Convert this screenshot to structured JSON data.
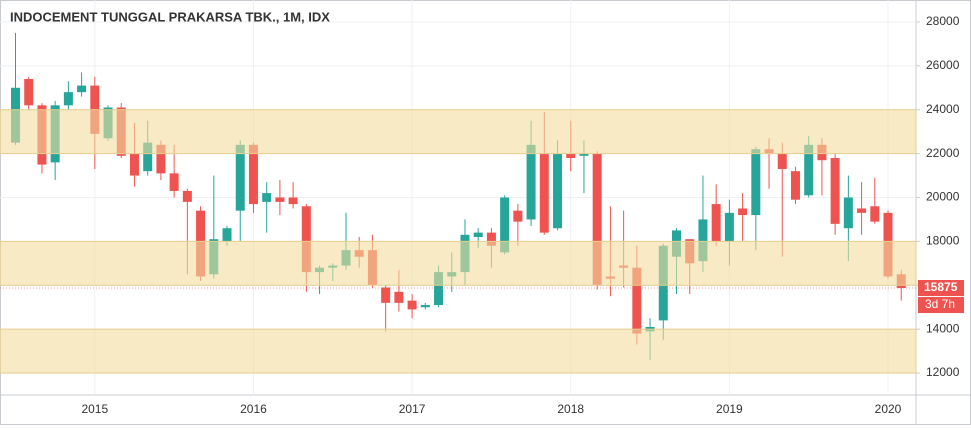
{
  "chart_data": {
    "type": "candlestick",
    "title": "INDOCEMENT TUNGGAL PRAKARSA TBK., 1M, IDX",
    "categories": [
      null,
      null,
      null,
      null,
      null,
      null,
      "2015",
      null,
      null,
      null,
      null,
      null,
      null,
      null,
      null,
      null,
      null,
      null,
      "2016",
      null,
      null,
      null,
      null,
      null,
      null,
      null,
      null,
      null,
      null,
      null,
      "2017",
      null,
      null,
      null,
      null,
      null,
      null,
      null,
      null,
      null,
      null,
      null,
      "2018",
      null,
      null,
      null,
      null,
      null,
      null,
      null,
      null,
      null,
      null,
      null,
      "2019",
      null,
      null,
      null,
      null,
      null,
      null,
      null,
      null,
      null,
      null,
      null,
      "2020",
      null
    ],
    "open": [
      22500,
      25400,
      24200,
      21600,
      24200,
      24800,
      25100,
      22700,
      24100,
      22000,
      21200,
      22400,
      21100,
      20300,
      19400,
      16500,
      18000,
      19400,
      22400,
      19800,
      20000,
      20000,
      19600,
      16600,
      16800,
      16900,
      17600,
      17600,
      15900,
      15700,
      15300,
      15000,
      15100,
      16400,
      16600,
      18200,
      18400,
      17500,
      19400,
      19000,
      22000,
      18600,
      22000,
      21900,
      22000,
      16400,
      16900,
      16800,
      13900,
      14400,
      17300,
      18100,
      17100,
      19700,
      18000,
      19500,
      19200,
      22200,
      22000,
      21200,
      20100,
      22400,
      21800,
      18600,
      19500,
      19600,
      19300,
      16500
    ],
    "high": [
      27500,
      25500,
      24300,
      24400,
      25300,
      25700,
      25500,
      24200,
      24300,
      23400,
      23500,
      22600,
      22400,
      20400,
      19600,
      21000,
      18700,
      22600,
      22500,
      20700,
      20800,
      20700,
      19700,
      16900,
      17000,
      19300,
      18200,
      18300,
      16000,
      16700,
      15600,
      15200,
      16900,
      17500,
      19000,
      18600,
      18600,
      20100,
      19700,
      23500,
      23900,
      22600,
      23500,
      22600,
      22100,
      19600,
      19400,
      17800,
      14500,
      17900,
      18600,
      18100,
      21000,
      20600,
      19900,
      20200,
      22300,
      22700,
      22500,
      21400,
      22800,
      22700,
      22000,
      21000,
      20700,
      20900,
      19400,
      16700
    ],
    "low": [
      22400,
      24000,
      21100,
      20800,
      24000,
      24600,
      21300,
      22600,
      21800,
      20500,
      21000,
      20800,
      20000,
      16500,
      16200,
      16300,
      17800,
      18000,
      19300,
      18400,
      19200,
      19500,
      15700,
      15600,
      16200,
      16700,
      16800,
      15900,
      13900,
      14800,
      14500,
      14900,
      15000,
      15700,
      16000,
      17700,
      16800,
      17400,
      17800,
      18700,
      18300,
      18500,
      21200,
      20200,
      15800,
      15500,
      15900,
      13300,
      12600,
      13500,
      15600,
      15600,
      16600,
      17800,
      16900,
      18000,
      17600,
      20400,
      17300,
      19700,
      20000,
      20100,
      18300,
      17100,
      18300,
      18800,
      16300,
      15300
    ],
    "close": [
      25000,
      24200,
      21500,
      24200,
      24800,
      25100,
      22900,
      24100,
      21900,
      21000,
      22500,
      21100,
      20300,
      19800,
      16400,
      18100,
      18600,
      22400,
      19700,
      20200,
      19800,
      19700,
      16600,
      16800,
      16900,
      17600,
      17300,
      16000,
      15200,
      15200,
      14900,
      15100,
      16600,
      16600,
      18300,
      18400,
      17800,
      20000,
      18900,
      22400,
      18400,
      22000,
      21800,
      22000,
      16000,
      16300,
      16800,
      13800,
      14100,
      17800,
      18500,
      17000,
      19000,
      18000,
      19300,
      19200,
      22200,
      22000,
      21300,
      19900,
      22400,
      21700,
      18800,
      20000,
      19300,
      18900,
      16400,
      15875
    ],
    "up_color": "#26a69a",
    "down_color": "#ef5350",
    "bands": [
      [
        22000,
        24000
      ],
      [
        16000,
        18000
      ],
      [
        12000,
        14000
      ]
    ],
    "band_color": "#f2dc9e",
    "last_value": 15875,
    "countdown": "3d 7h",
    "ylim": [
      11000,
      29000
    ],
    "yticks": [
      12000,
      14000,
      16000,
      18000,
      20000,
      22000,
      24000,
      26000,
      28000
    ],
    "grid": true
  }
}
